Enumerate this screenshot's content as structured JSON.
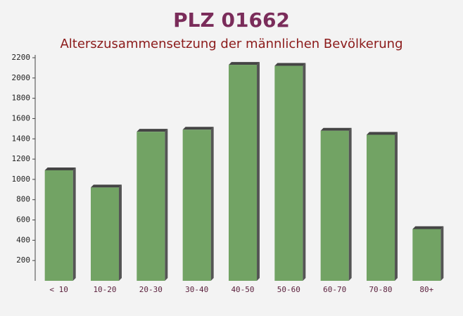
{
  "chart_data": {
    "type": "bar",
    "title": "PLZ 01662",
    "subtitle": "Alterszusammensetzung der männlichen Bevölkerung",
    "categories": [
      "< 10",
      "10-20",
      "20-30",
      "30-40",
      "40-50",
      "50-60",
      "60-70",
      "70-80",
      "80+"
    ],
    "values": [
      1090,
      920,
      1470,
      1490,
      2130,
      2120,
      1480,
      1440,
      510
    ],
    "color": "#6a9e5c",
    "ylim": [
      0,
      2200
    ],
    "yticks": [
      200,
      400,
      600,
      800,
      1000,
      1200,
      1400,
      1600,
      1800,
      2000,
      2200
    ],
    "grid": false
  }
}
